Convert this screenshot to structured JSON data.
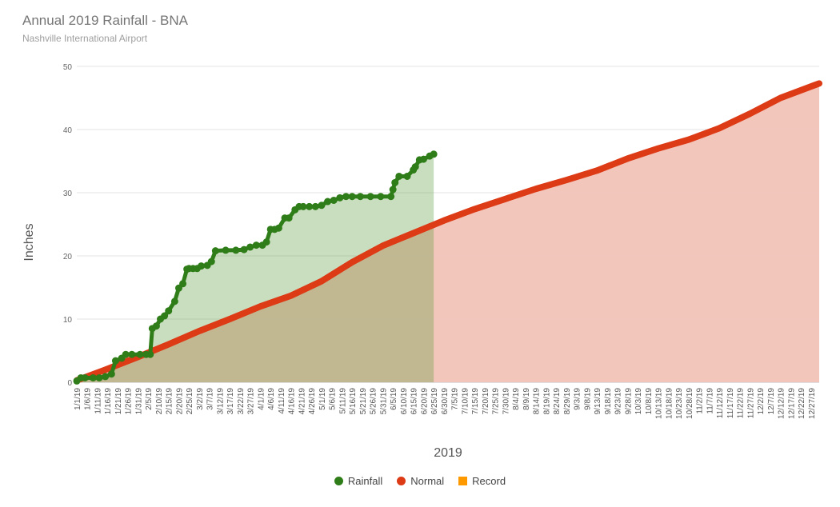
{
  "title": "Annual 2019 Rainfall - BNA",
  "subtitle": "Nashville International Airport",
  "colors": {
    "rainfall": "#2f7d18",
    "normal": "#dd3a16",
    "record": "#ff9900",
    "rainfall_fill": "#c7dfc0",
    "normal_fill": "#f2c3b8",
    "grid": "#e3e3e3",
    "axis_text": "#555555"
  },
  "legend": [
    {
      "label": "Rainfall",
      "color": "#2f7d18",
      "shape": "circle"
    },
    {
      "label": "Normal",
      "color": "#dd3a16",
      "shape": "circle"
    },
    {
      "label": "Record",
      "color": "#ff9900",
      "shape": "square"
    }
  ],
  "chart_data": {
    "type": "area",
    "title": "Annual 2019 Rainfall - BNA",
    "subtitle": "Nashville International Airport",
    "xlabel": "2019",
    "ylabel": "Inches",
    "ylim": [
      0,
      50
    ],
    "yticks": [
      0,
      10,
      20,
      30,
      40,
      50
    ],
    "grid": true,
    "legend_position": "bottom",
    "x_tick_labels": [
      "1/1/19",
      "1/6/19",
      "1/11/19",
      "1/16/19",
      "1/21/19",
      "1/26/19",
      "1/31/19",
      "2/5/19",
      "2/10/19",
      "2/15/19",
      "2/20/19",
      "2/25/19",
      "3/2/19",
      "3/7/19",
      "3/12/19",
      "3/17/19",
      "3/22/19",
      "3/27/19",
      "4/1/19",
      "4/6/19",
      "4/11/19",
      "4/16/19",
      "4/21/19",
      "4/26/19",
      "5/1/19",
      "5/6/19",
      "5/11/19",
      "5/16/19",
      "5/21/19",
      "5/26/19",
      "5/31/19",
      "6/5/19",
      "6/10/19",
      "6/15/19",
      "6/20/19",
      "6/25/19",
      "6/30/19",
      "7/5/19",
      "7/10/19",
      "7/15/19",
      "7/20/19",
      "7/25/19",
      "7/30/19",
      "8/4/19",
      "8/9/19",
      "8/14/19",
      "8/19/19",
      "8/24/19",
      "8/29/19",
      "9/3/19",
      "9/8/19",
      "9/13/19",
      "9/18/19",
      "9/23/19",
      "9/28/19",
      "10/3/19",
      "10/8/19",
      "10/13/19",
      "10/18/19",
      "10/23/19",
      "10/28/19",
      "11/2/19",
      "11/7/19",
      "11/12/19",
      "11/17/19",
      "11/22/19",
      "11/27/19",
      "12/2/19",
      "12/7/19",
      "12/12/19",
      "12/17/19",
      "12/22/19",
      "12/27/19"
    ],
    "series": [
      {
        "name": "Rainfall",
        "color": "#2f7d18",
        "x": [
          "1/1/19",
          "1/3/19",
          "1/5/19",
          "1/9/19",
          "1/12/19",
          "1/15/19",
          "1/18/19",
          "1/20/19",
          "1/23/19",
          "1/25/19",
          "1/28/19",
          "2/1/19",
          "2/4/19",
          "2/6/19",
          "2/7/19",
          "2/9/19",
          "2/11/19",
          "2/13/19",
          "2/15/19",
          "2/18/19",
          "2/20/19",
          "2/22/19",
          "2/24/19",
          "2/25/19",
          "2/27/19",
          "3/1/19",
          "3/3/19",
          "3/6/19",
          "3/8/19",
          "3/10/19",
          "3/15/19",
          "3/20/19",
          "3/24/19",
          "3/27/19",
          "3/30/19",
          "4/2/19",
          "4/4/19",
          "4/6/19",
          "4/8/19",
          "4/10/19",
          "4/13/19",
          "4/15/19",
          "4/18/19",
          "4/20/19",
          "4/22/19",
          "4/25/19",
          "4/28/19",
          "5/1/19",
          "5/4/19",
          "5/7/19",
          "5/10/19",
          "5/13/19",
          "5/16/19",
          "5/20/19",
          "5/25/19",
          "5/30/19",
          "6/4/19",
          "6/5/19",
          "6/6/19",
          "6/8/19",
          "6/12/19",
          "6/15/19",
          "6/16/19",
          "6/18/19",
          "6/20/19",
          "6/23/19",
          "6/25/19"
        ],
        "values": [
          0.2,
          0.7,
          0.7,
          0.7,
          0.7,
          0.9,
          1.3,
          3.4,
          3.8,
          4.4,
          4.4,
          4.4,
          4.4,
          4.4,
          8.5,
          8.9,
          10.0,
          10.5,
          11.3,
          12.8,
          14.9,
          15.6,
          17.9,
          18.0,
          18.0,
          18.0,
          18.4,
          18.5,
          19.1,
          20.8,
          20.9,
          20.9,
          21.0,
          21.4,
          21.7,
          21.7,
          22.2,
          24.2,
          24.2,
          24.4,
          26.0,
          26.0,
          27.3,
          27.8,
          27.8,
          27.8,
          27.8,
          28.0,
          28.6,
          28.8,
          29.2,
          29.4,
          29.4,
          29.4,
          29.4,
          29.4,
          29.4,
          30.5,
          31.6,
          32.6,
          32.6,
          33.6,
          34.1,
          35.2,
          35.3,
          35.8,
          36.1
        ]
      },
      {
        "name": "Normal",
        "color": "#dd3a16",
        "x": [
          "1/1/19",
          "1/16/19",
          "1/31/19",
          "2/15/19",
          "3/2/19",
          "3/17/19",
          "4/1/19",
          "4/16/19",
          "5/1/19",
          "5/16/19",
          "5/31/19",
          "6/15/19",
          "6/30/19",
          "7/15/19",
          "7/30/19",
          "8/14/19",
          "8/29/19",
          "9/13/19",
          "9/28/19",
          "10/13/19",
          "10/28/19",
          "11/12/19",
          "11/27/19",
          "12/12/19",
          "12/31/19"
        ],
        "values": [
          0.3,
          2.1,
          4.0,
          6.0,
          8.1,
          10.0,
          12.0,
          13.7,
          16.0,
          19.0,
          21.6,
          23.6,
          25.6,
          27.4,
          29.0,
          30.6,
          32.0,
          33.5,
          35.4,
          37.0,
          38.4,
          40.2,
          42.5,
          45.0,
          47.3
        ]
      },
      {
        "name": "Record",
        "color": "#ff9900",
        "x": [],
        "values": []
      }
    ]
  }
}
